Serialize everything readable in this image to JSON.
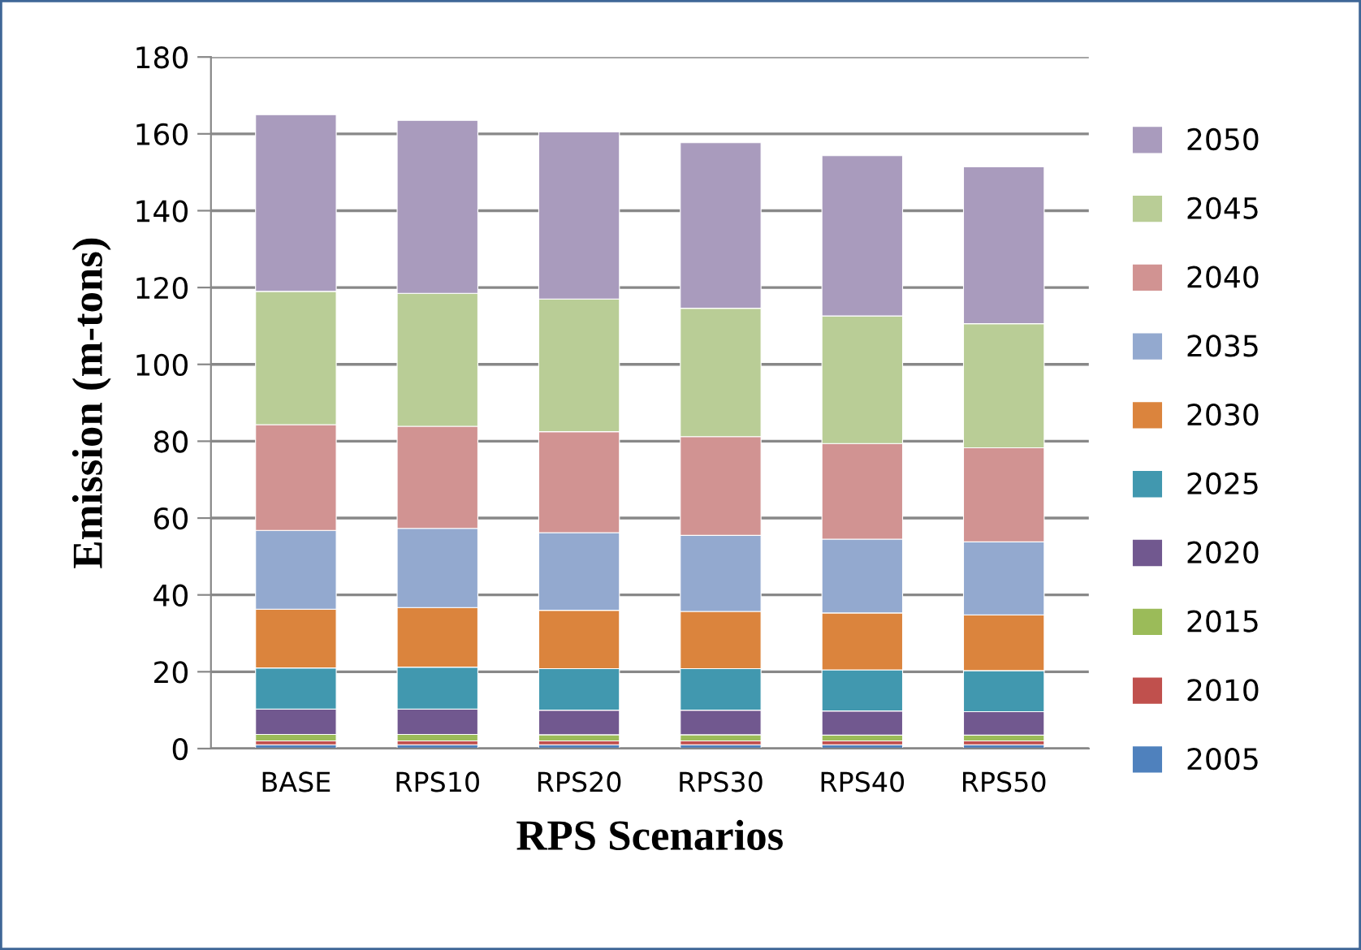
{
  "chart_data": {
    "type": "bar",
    "stacked": true,
    "xlabel": "RPS Scenarios",
    "ylabel": "Emission (m-tons)",
    "categories": [
      "BASE",
      "RPS10",
      "RPS20",
      "RPS30",
      "RPS40",
      "RPS50"
    ],
    "series": [
      {
        "name": "2005",
        "color": "#4f81bd",
        "values": [
          1,
          1,
          1,
          1,
          1,
          1
        ]
      },
      {
        "name": "2010",
        "color": "#c0504d",
        "values": [
          1,
          1,
          1,
          1,
          1,
          1
        ]
      },
      {
        "name": "2015",
        "color": "#9bbb59",
        "values": [
          1.7,
          1.7,
          1.6,
          1.6,
          1.5,
          1.5
        ]
      },
      {
        "name": "2020",
        "color": "#71588f",
        "values": [
          6.6,
          6.6,
          6.4,
          6.4,
          6.3,
          6.1
        ]
      },
      {
        "name": "2025",
        "color": "#4198af",
        "values": [
          10.7,
          10.9,
          10.8,
          10.8,
          10.7,
          10.7
        ]
      },
      {
        "name": "2030",
        "color": "#db843d",
        "values": [
          15.3,
          15.5,
          15.2,
          14.9,
          14.8,
          14.5
        ]
      },
      {
        "name": "2035",
        "color": "#93a9cf",
        "values": [
          20.5,
          20.6,
          20.2,
          19.8,
          19.2,
          19
        ]
      },
      {
        "name": "2040",
        "color": "#d19392",
        "values": [
          27.5,
          26.6,
          26.3,
          25.7,
          24.9,
          24.5
        ]
      },
      {
        "name": "2045",
        "color": "#b9cd96",
        "values": [
          34.7,
          34.6,
          34.5,
          33.4,
          33.2,
          32.3
        ]
      },
      {
        "name": "2050",
        "color": "#a99bbd",
        "values": [
          46,
          45,
          43.5,
          43.1,
          41.7,
          40.8
        ]
      }
    ],
    "ylim": [
      0,
      180
    ],
    "yticks": [
      0,
      20,
      40,
      60,
      80,
      100,
      120,
      140,
      160,
      180
    ],
    "grid": "y",
    "legend": "right"
  }
}
